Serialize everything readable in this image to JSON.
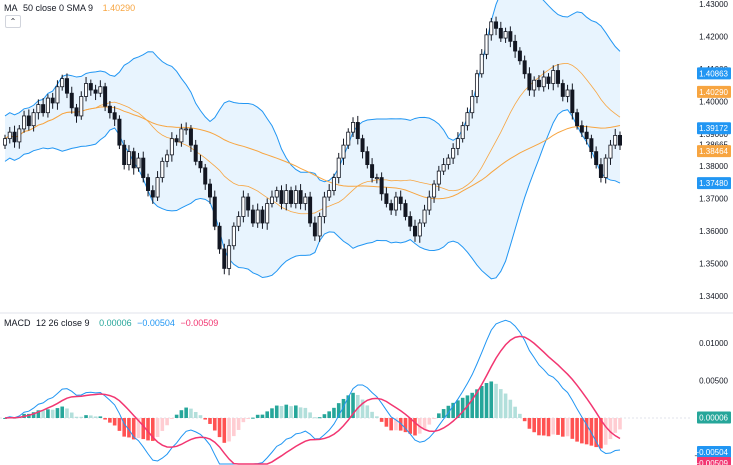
{
  "ma_legend": {
    "name": "MA",
    "params": "50 close 0 SMA 9",
    "value": "1.40290",
    "color": "#f7a541"
  },
  "macd_legend": {
    "name": "MACD",
    "params": "12 26 close 9",
    "histogram": "0.00006",
    "macd": "−0.00504",
    "signal": "−0.00509",
    "colors": {
      "histogram": "#26a69a",
      "macd": "#2196f3",
      "signal": "#f23671"
    }
  },
  "collapse_icon": "chevron-up-icon",
  "chart_data": [
    {
      "type": "candlestick",
      "title": "",
      "ylim": [
        1.335,
        1.432
      ],
      "yticks": [
        "1.43000",
        "1.42000",
        "1.41000",
        "1.40000",
        "1.39000",
        "1.38000",
        "1.37000",
        "1.36000",
        "1.35000",
        "1.34000"
      ],
      "price_labels": [
        {
          "text": "1.40863",
          "value": 1.40863,
          "color": "#2196f3"
        },
        {
          "text": "1.40290",
          "value": 1.4029,
          "color": "#f7a541"
        },
        {
          "text": "1.39172",
          "value": 1.39172,
          "color": "#2196f3"
        },
        {
          "text": "1.38665",
          "value": 1.38665,
          "color": ""
        },
        {
          "text": "1.38464",
          "value": 1.38464,
          "color": "#f7a541"
        },
        {
          "text": "1.37480",
          "value": 1.3748,
          "color": "#2196f3"
        }
      ],
      "close": [
        1.3885,
        1.3905,
        1.3875,
        1.3915,
        1.3955,
        1.3925,
        1.3965,
        1.399,
        1.3965,
        1.401,
        1.3995,
        1.4045,
        1.407,
        1.4025,
        1.398,
        1.3955,
        1.4015,
        1.4055,
        1.4035,
        1.4025,
        1.4045,
        1.3985,
        1.3965,
        1.3945,
        1.3865,
        1.3805,
        1.3845,
        1.3795,
        1.3825,
        1.3765,
        1.3725,
        1.3705,
        1.3765,
        1.3815,
        1.3835,
        1.3885,
        1.3875,
        1.3915,
        1.3915,
        1.3865,
        1.3815,
        1.3795,
        1.3745,
        1.3705,
        1.3615,
        1.3545,
        1.3485,
        1.3555,
        1.3615,
        1.3645,
        1.3705,
        1.3665,
        1.3625,
        1.3665,
        1.3625,
        1.3685,
        1.3705,
        1.3725,
        1.3685,
        1.3725,
        1.3685,
        1.3725,
        1.3685,
        1.3705,
        1.3625,
        1.3585,
        1.3645,
        1.3705,
        1.3725,
        1.3765,
        1.3825,
        1.3865,
        1.3905,
        1.3935,
        1.3885,
        1.3845,
        1.3805,
        1.3765,
        1.3765,
        1.3715,
        1.3685,
        1.3665,
        1.3705,
        1.3685,
        1.3645,
        1.3615,
        1.3585,
        1.3625,
        1.3665,
        1.3705,
        1.3745,
        1.3785,
        1.3805,
        1.3825,
        1.3855,
        1.3885,
        1.3925,
        1.3965,
        1.4015,
        1.4085,
        1.4145,
        1.4205,
        1.4245,
        1.4225,
        1.4195,
        1.4215,
        1.4185,
        1.4155,
        1.4125,
        1.4085,
        1.4035,
        1.4065,
        1.4045,
        1.4075,
        1.4055,
        1.4095,
        1.4055,
        1.4015,
        1.4035,
        1.3965,
        1.3925,
        1.3905,
        1.3885,
        1.3845,
        1.3805,
        1.3765,
        1.3825,
        1.3865,
        1.3895,
        1.3865
      ]
    },
    {
      "type": "macd",
      "title": "",
      "yticks": [
        "0.01000",
        "0.00500",
        "0.00000",
        "-0.00500"
      ],
      "value_labels": [
        {
          "text": "0.00006",
          "value": 6e-05,
          "color": "#26a69a"
        },
        {
          "text": "−0.00504",
          "value": -0.00504,
          "color": "#2196f3"
        },
        {
          "text": "−0.00509",
          "value": -0.00509,
          "color": "#f23671"
        }
      ]
    }
  ]
}
